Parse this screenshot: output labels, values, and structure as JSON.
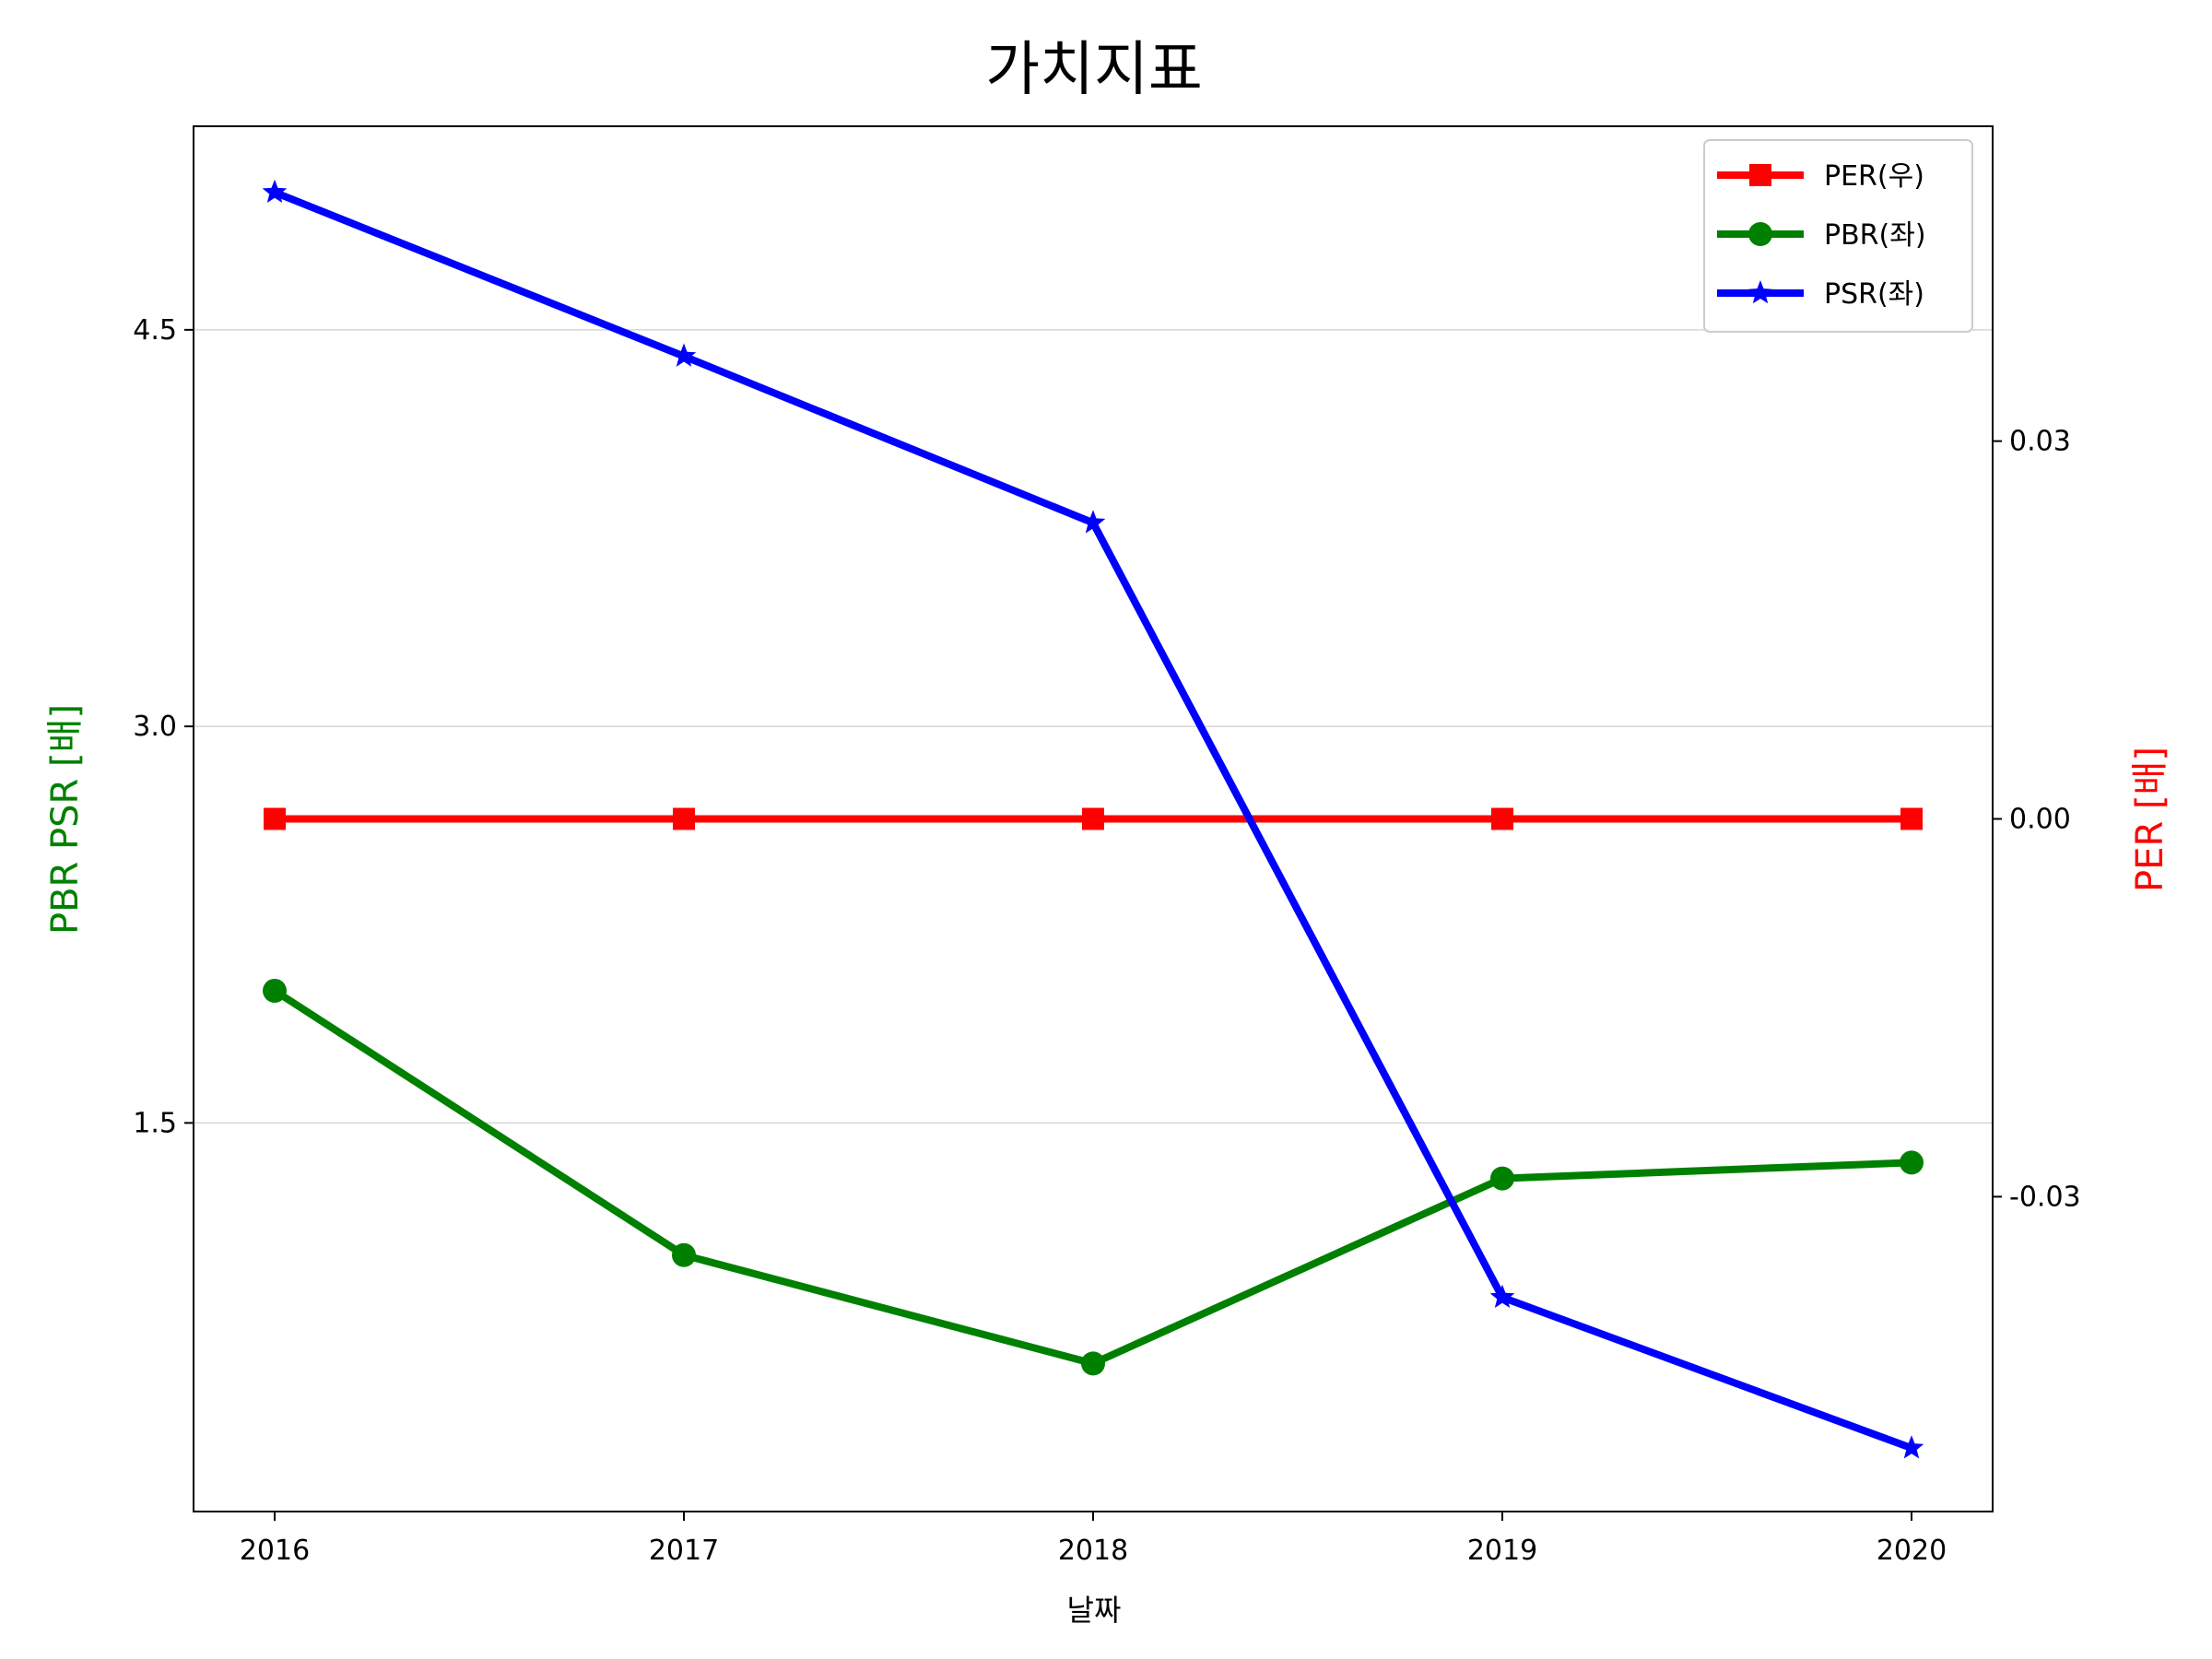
{
  "chart_data": {
    "type": "line",
    "title": "가치지표",
    "xlabel": "날짜",
    "ylabel_left": "PBR PSR [배]",
    "ylabel_right": "PER [배]",
    "ylabel_left_color": "#008000",
    "ylabel_right_color": "#ff0000",
    "x": [
      "2016",
      "2017",
      "2018",
      "2019",
      "2020"
    ],
    "y_left_ticks": [
      "1.5",
      "3.0",
      "4.5"
    ],
    "y_left_tick_values": [
      1.5,
      3.0,
      4.5
    ],
    "y_left_range": [
      0.03,
      5.27
    ],
    "y_right_ticks": [
      "-0.03",
      "0.00",
      "0.03"
    ],
    "y_right_tick_values": [
      -0.03,
      0.0,
      0.03
    ],
    "y_right_range": [
      -0.055,
      0.055
    ],
    "grid": "horizontal (left axis)",
    "legend_position": "top-right",
    "series": [
      {
        "name": "PER(우)",
        "axis": "right",
        "color": "#ff0000",
        "marker": "square",
        "values": [
          0,
          0,
          0,
          0,
          0
        ]
      },
      {
        "name": "PBR(좌)",
        "axis": "left",
        "color": "#008000",
        "marker": "circle",
        "values": [
          2.0,
          1.0,
          0.59,
          1.29,
          1.35
        ]
      },
      {
        "name": "PSR(좌)",
        "axis": "left",
        "color": "#0000ff",
        "marker": "star",
        "values": [
          5.02,
          4.4,
          3.77,
          0.84,
          0.27
        ]
      }
    ]
  }
}
